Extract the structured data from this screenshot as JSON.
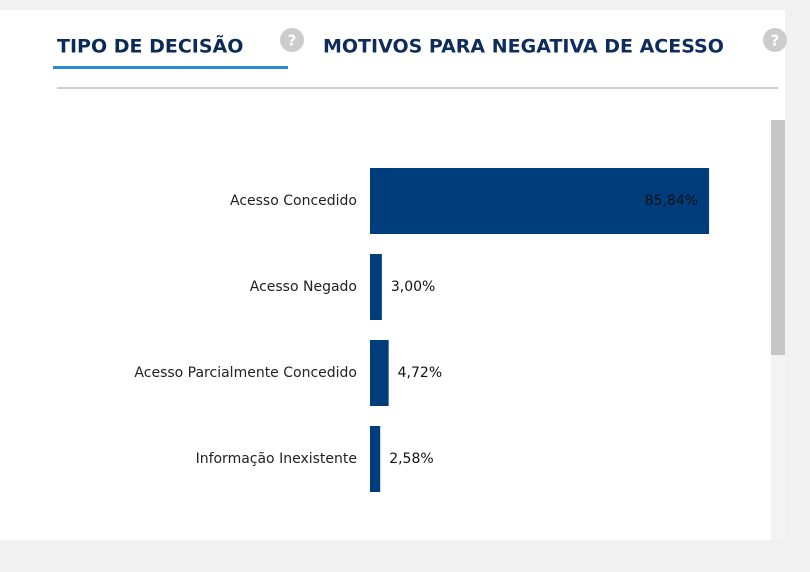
{
  "tabs": [
    {
      "label": "TIPO DE DECISÃO",
      "active": true
    },
    {
      "label": "MOTIVOS PARA NEGATIVA DE ACESSO",
      "active": false
    }
  ],
  "chart_data": {
    "type": "bar",
    "orientation": "horizontal",
    "categories": [
      "Acesso Concedido",
      "Acesso Negado",
      "Acesso Parcialmente Concedido",
      "Informação Inexistente"
    ],
    "values": [
      85.84,
      3.0,
      4.72,
      2.58
    ],
    "value_labels": [
      "85,84%",
      "3,00%",
      "4,72%",
      "2,58%"
    ],
    "color": "#003d7d",
    "xlim": [
      0,
      100
    ]
  }
}
